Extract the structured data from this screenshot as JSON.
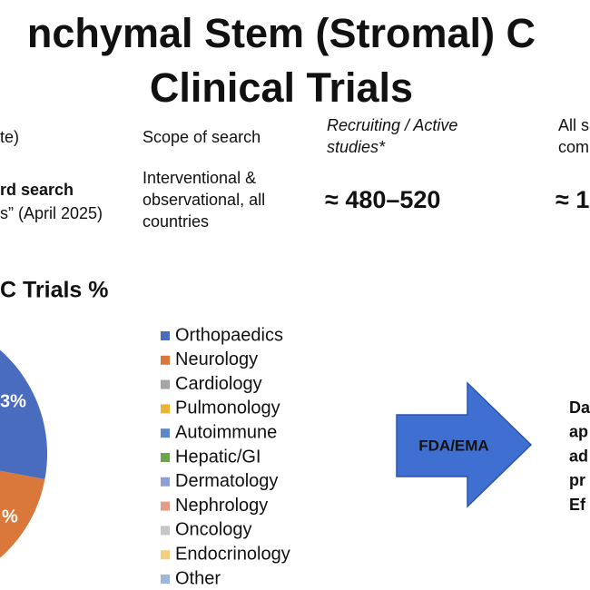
{
  "title": {
    "lines": [
      "nchymal Stem (Stromal) C",
      "Clinical Trials"
    ]
  },
  "table": {
    "header": [
      "te)",
      "Scope of search",
      "Recruiting / Active studies*",
      "All s com"
    ],
    "rows": [
      [
        [
          "rd search",
          "s” (April 2025)"
        ],
        [
          "Interventional &",
          "observational, all",
          "countries"
        ],
        "≈ 480–520",
        "≈ 1"
      ]
    ]
  },
  "section_title": "C Trials %",
  "pie": {
    "labels": [
      "3%",
      "%"
    ]
  },
  "legend": [
    "Orthopaedics",
    "Neurology",
    "Cardiology",
    "Pulmonology",
    "Autoimmune",
    "Hepatic/GI",
    "Dermatology",
    "Nephrology",
    "Oncology",
    "Endocrinology",
    "Other"
  ],
  "arrow": {
    "label": "FDA/EMA"
  },
  "side_text": [
    "Da",
    "ap",
    "ad",
    "pr",
    "Ef"
  ]
}
